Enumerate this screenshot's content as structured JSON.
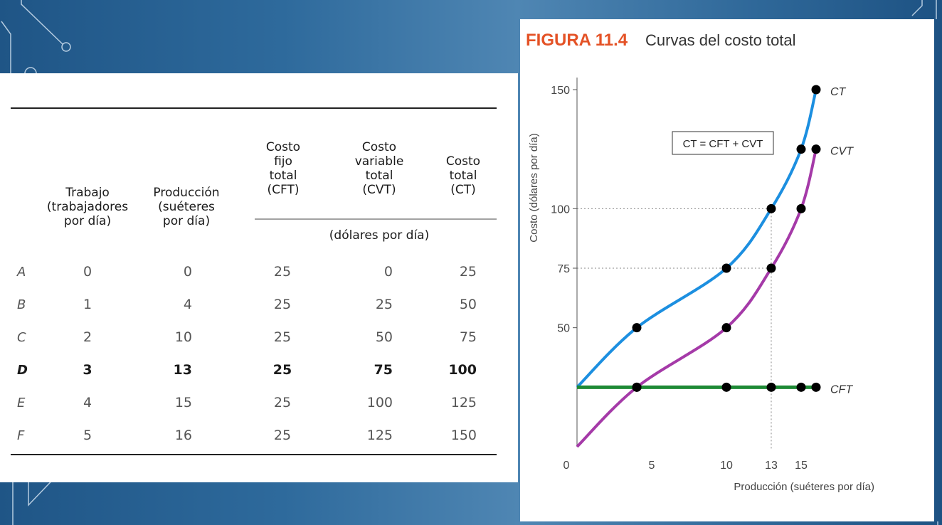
{
  "table": {
    "headers": {
      "trabajo": [
        "Trabajo",
        "(trabajadores",
        "por día)"
      ],
      "produccion": [
        "Producción",
        "(suéteres",
        "por día)"
      ],
      "cft": [
        "Costo",
        "fijo",
        "total",
        "(CFT)"
      ],
      "cvt": [
        "Costo",
        "variable",
        "total",
        "(CVT)"
      ],
      "ct": [
        "Costo",
        "total",
        "(CT)"
      ],
      "units": "(dólares por día)"
    },
    "rows": [
      {
        "label": "A",
        "trabajo": "0",
        "produccion": "0",
        "cft": "25",
        "cvt": "0",
        "ct": "25",
        "bold": false
      },
      {
        "label": "B",
        "trabajo": "1",
        "produccion": "4",
        "cft": "25",
        "cvt": "25",
        "ct": "50",
        "bold": false
      },
      {
        "label": "C",
        "trabajo": "2",
        "produccion": "10",
        "cft": "25",
        "cvt": "50",
        "ct": "75",
        "bold": false
      },
      {
        "label": "D",
        "trabajo": "3",
        "produccion": "13",
        "cft": "25",
        "cvt": "75",
        "ct": "100",
        "bold": true
      },
      {
        "label": "E",
        "trabajo": "4",
        "produccion": "15",
        "cft": "25",
        "cvt": "100",
        "ct": "125",
        "bold": false
      },
      {
        "label": "F",
        "trabajo": "5",
        "produccion": "16",
        "cft": "25",
        "cvt": "125",
        "ct": "150",
        "bold": false
      }
    ]
  },
  "figure": {
    "number": "FIGURA 11.4",
    "title": "Curvas del costo total",
    "equation": "CT = CFT + CVT"
  },
  "colors": {
    "ct": "#1c8fe0",
    "cvt": "#a53aa8",
    "cft": "#1e8a35",
    "figure_number": "#e45226"
  },
  "chart_data": {
    "type": "line",
    "title": "Curvas del costo total",
    "xlabel": "Producción (suéteres por día)",
    "ylabel": "Costo (dólares por día)",
    "xlim": [
      0,
      20
    ],
    "ylim": [
      0,
      150
    ],
    "x_ticks": [
      0,
      5,
      10,
      13,
      15
    ],
    "y_ticks": [
      50,
      75,
      100,
      150
    ],
    "guide_lines": {
      "y": [
        75,
        100
      ],
      "x": [
        13
      ]
    },
    "series": [
      {
        "name": "CT",
        "x": [
          0,
          4,
          10,
          13,
          15,
          16
        ],
        "y": [
          25,
          50,
          75,
          100,
          125,
          150
        ]
      },
      {
        "name": "CVT",
        "x": [
          0,
          4,
          10,
          13,
          15,
          16
        ],
        "y": [
          0,
          25,
          50,
          75,
          100,
          125
        ]
      },
      {
        "name": "CFT",
        "x": [
          0,
          4,
          10,
          13,
          15,
          16
        ],
        "y": [
          25,
          25,
          25,
          25,
          25,
          25
        ]
      }
    ]
  }
}
